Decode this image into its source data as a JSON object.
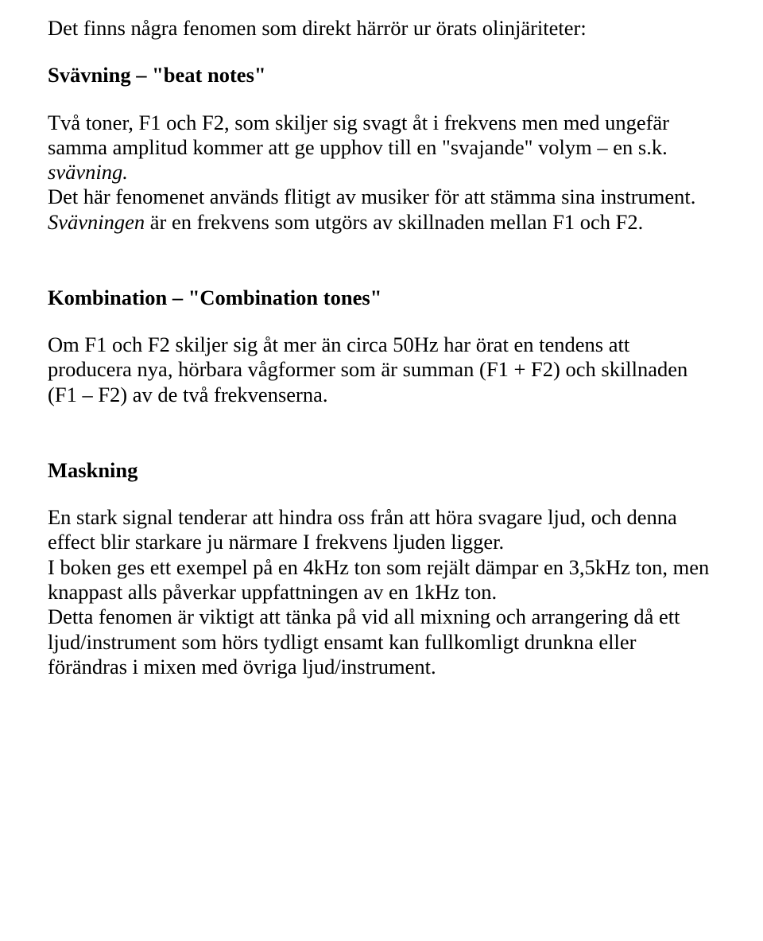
{
  "intro": "Det finns några fenomen som direkt härrör ur örats olinjäriteter:",
  "section1": {
    "heading_plain": "Svävning – ",
    "heading_quoted": "\"beat notes\"",
    "p1": "Två toner, F1 och F2, som skiljer sig svagt åt i frekvens men med ungefär samma amplitud kommer att ge upphov till en \"svajande\" volym – en s.k. ",
    "p1_italic": "svävning.",
    "p2": "Det här fenomenet används flitigt av musiker för att stämma sina instrument.",
    "p3_italic": "Svävningen",
    "p3_rest": " är en frekvens som utgörs av skillnaden mellan F1 och F2."
  },
  "section2": {
    "heading_plain": "Kombination – ",
    "heading_quoted": "\"Combination tones\"",
    "p1": "Om F1 och F2 skiljer sig åt mer än circa 50Hz har örat en tendens att producera nya, hörbara vågformer som är summan (F1 + F2) och skillnaden (F1 – F2) av de två frekvenserna."
  },
  "section3": {
    "heading": "Maskning",
    "p1": "En stark signal tenderar att hindra oss från att höra svagare ljud, och denna effect blir starkare ju närmare I frekvens ljuden ligger.",
    "p2": "I boken ges ett exempel på en 4kHz ton som rejält dämpar en 3,5kHz ton, men knappast alls påverkar uppfattningen av en 1kHz ton.",
    "p3": "Detta fenomen är viktigt att tänka på vid all mixning och arrangering då ett ljud/instrument som hörs tydligt ensamt kan fullkomligt drunkna eller förändras i mixen med övriga ljud/instrument."
  }
}
